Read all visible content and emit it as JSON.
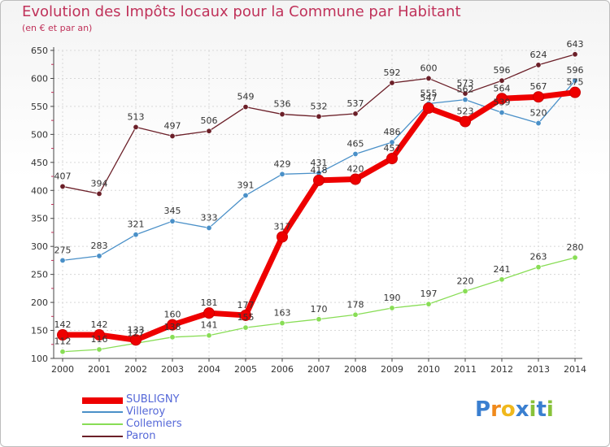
{
  "chart_data": {
    "type": "line",
    "title": "Evolution des Impôts locaux pour la Commune par Habitant",
    "subtitle": "(en € et par an)",
    "categories": [
      "2000",
      "2001",
      "2002",
      "2003",
      "2004",
      "2005",
      "2006",
      "2007",
      "2008",
      "2009",
      "2010",
      "2011",
      "2012",
      "2013",
      "2014"
    ],
    "ylim": [
      100,
      650
    ],
    "yticks": [
      100,
      150,
      200,
      250,
      300,
      350,
      400,
      450,
      500,
      550,
      600,
      650
    ],
    "series": [
      {
        "name": "SUBLIGNY",
        "color": "#ee0000",
        "values": [
          142,
          142,
          133,
          160,
          181,
          177,
          317,
          418,
          420,
          457,
          547,
          523,
          564,
          567,
          575
        ],
        "labels": [
          "142",
          "142",
          "133",
          "160",
          "181",
          "177",
          "317",
          "418",
          "420",
          "457",
          "547",
          "523",
          "564",
          "567",
          "575"
        ]
      },
      {
        "name": "Villeroy",
        "color": "#4a90c8",
        "values": [
          275,
          283,
          321,
          345,
          333,
          391,
          429,
          431,
          465,
          486,
          555,
          562,
          539,
          520,
          596
        ],
        "labels": [
          "275",
          "283",
          "321",
          "345",
          "333",
          "391",
          "429",
          "431",
          "465",
          "486",
          "555",
          "562",
          "539",
          "520",
          "596"
        ]
      },
      {
        "name": "Collemiers",
        "color": "#88dd55",
        "values": [
          112,
          116,
          127,
          138,
          141,
          155,
          163,
          170,
          178,
          190,
          197,
          220,
          241,
          263,
          280
        ],
        "labels": [
          "112",
          "116",
          "127",
          "138",
          "141",
          "155",
          "163",
          "170",
          "178",
          "190",
          "197",
          "220",
          "241",
          "263",
          "280"
        ]
      },
      {
        "name": "Paron",
        "color": "#6b1f28",
        "values": [
          407,
          394,
          513,
          497,
          506,
          549,
          536,
          532,
          537,
          592,
          600,
          573,
          596,
          624,
          643
        ],
        "labels": [
          "407",
          "394",
          "513",
          "497",
          "506",
          "549",
          "536",
          "532",
          "537",
          "592",
          "600",
          "573",
          "596",
          "624",
          "643"
        ]
      }
    ]
  },
  "logo": {
    "letters": [
      "P",
      "r",
      "o",
      "x",
      "i",
      "t",
      "i"
    ],
    "colors": [
      "#3a7fd0",
      "#f08a1c",
      "#f0b81c",
      "#3a7fd0",
      "#88c23a",
      "#3a7fd0",
      "#88c23a"
    ]
  }
}
